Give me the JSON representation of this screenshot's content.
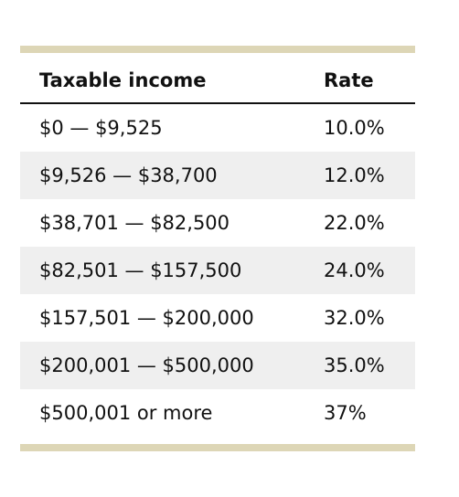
{
  "table": {
    "headers": {
      "income": "Taxable income",
      "rate": "Rate"
    },
    "rows": [
      {
        "income": "$0 — $9,525",
        "rate": "10.0%"
      },
      {
        "income": "$9,526 — $38,700",
        "rate": "12.0%"
      },
      {
        "income": "$38,701 — $82,500",
        "rate": "22.0%"
      },
      {
        "income": "$82,501 — $157,500",
        "rate": "24.0%"
      },
      {
        "income": "$157,501 — $200,000",
        "rate": "32.0%"
      },
      {
        "income": "$200,001 — $500,000",
        "rate": "35.0%"
      },
      {
        "income": "$500,001 or more",
        "rate": "37%"
      }
    ]
  },
  "colors": {
    "rule": "#ddd6b6",
    "stripe": "#efefef",
    "text": "#111111"
  }
}
